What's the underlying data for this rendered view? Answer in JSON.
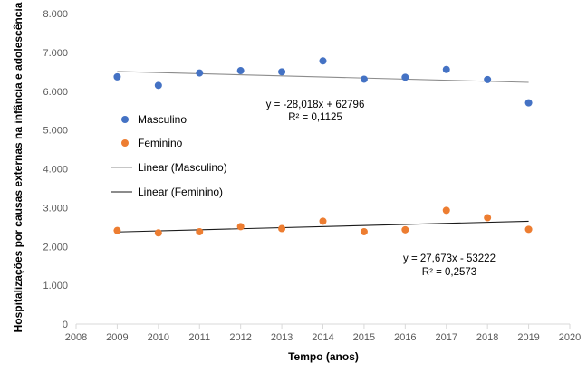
{
  "chart_data": {
    "type": "scatter",
    "xlabel": "Tempo (anos)",
    "ylabel": "Hospitalizações por causas externas na infância e adolescência",
    "xlim": [
      2008,
      2020
    ],
    "ylim": [
      0,
      8000
    ],
    "x_ticks": [
      "2008",
      "2009",
      "2010",
      "2011",
      "2012",
      "2013",
      "2014",
      "2015",
      "2016",
      "2017",
      "2018",
      "2019",
      "2020"
    ],
    "y_ticks": [
      "0",
      "1.000",
      "2.000",
      "3.000",
      "4.000",
      "5.000",
      "6.000",
      "7.000",
      "8.000"
    ],
    "grid": false,
    "legend_position": "left",
    "series": [
      {
        "name": "Masculino",
        "color": "#4472c4",
        "x": [
          2009,
          2010,
          2011,
          2012,
          2013,
          2014,
          2015,
          2016,
          2017,
          2018,
          2019
        ],
        "values": [
          6370,
          6150,
          6470,
          6530,
          6500,
          6780,
          6310,
          6360,
          6560,
          6300,
          5700
        ]
      },
      {
        "name": "Feminino",
        "color": "#ed7d31",
        "x": [
          2009,
          2010,
          2011,
          2012,
          2013,
          2014,
          2015,
          2016,
          2017,
          2018,
          2019
        ],
        "values": [
          2410,
          2350,
          2380,
          2510,
          2460,
          2650,
          2380,
          2430,
          2930,
          2740,
          2440
        ]
      }
    ],
    "trendlines": [
      {
        "name": "Linear (Masculino)",
        "color": "#8c8c8c",
        "slope": -28.018,
        "intercept": 62796,
        "equation": "y = -28,018x + 62796",
        "r2": "R² = 0,1125",
        "x_range": [
          2009,
          2019
        ]
      },
      {
        "name": "Linear (Feminino)",
        "color": "#1a1a1a",
        "slope": 27.673,
        "intercept": -53222,
        "equation": "y = 27,673x - 53222",
        "r2": "R² = 0,2573",
        "x_range": [
          2009,
          2019
        ]
      }
    ]
  }
}
